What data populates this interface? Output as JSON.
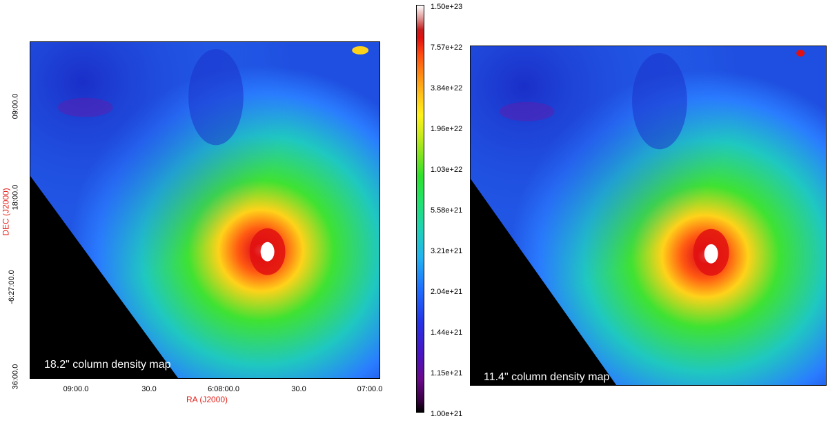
{
  "left_panel": {
    "caption": "18.2\" column density map",
    "x_axis_title": "RA (J2000)",
    "y_axis_title": "DEC (J2000)",
    "x_ticks": [
      "09:00.0",
      "30.0",
      "6:08:00.0",
      "30.0",
      "07:00.0"
    ],
    "y_ticks": [
      "09:00.0",
      "18:00.0",
      "-6:27:00.0",
      "36:00.0"
    ]
  },
  "right_panel": {
    "caption": "11.4\" column density map"
  },
  "colorbar": {
    "labels": [
      "1.50e+23",
      "7.57e+22",
      "3.84e+22",
      "1.96e+22",
      "1.03e+22",
      "5.58e+21",
      "3.21e+21",
      "2.04e+21",
      "1.44e+21",
      "1.15e+21",
      "1.00e+21"
    ]
  }
}
